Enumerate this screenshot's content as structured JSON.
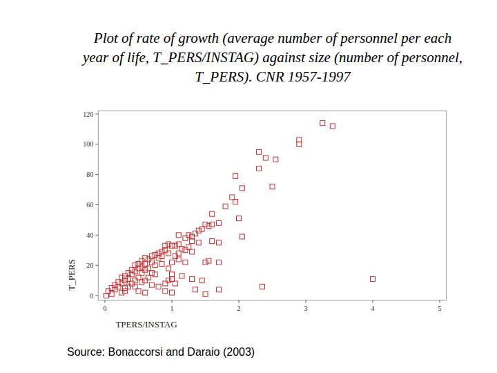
{
  "chart_data": {
    "type": "scatter",
    "title": "Plot of rate of growth (average number of personnel per each year of life, T_PERS/INSTAG) against size (number of personnel, T_PERS). CNR 1957-1997",
    "x_label": "TPERS/INSTAG",
    "y_label": "T_PERS",
    "source": "Source: Bonaccorsi and Daraio (2003)",
    "color": "#c8282a",
    "marker": "square",
    "grid": false,
    "xlim": [
      -0.1,
      5.1
    ],
    "ylim": [
      -3,
      122
    ],
    "xticks": [
      0,
      1,
      2,
      3,
      4,
      5
    ],
    "yticks": [
      0,
      20,
      40,
      60,
      80,
      100,
      120
    ],
    "x": [
      3.25,
      3.4,
      2.9,
      2.9,
      2.3,
      2.4,
      2.55,
      2.3,
      2.5,
      1.95,
      2.05,
      1.9,
      1.95,
      1.8,
      2.0,
      2.05,
      1.6,
      1.7,
      1.6,
      1.5,
      1.55,
      1.45,
      1.4,
      1.35,
      1.3,
      1.25,
      1.1,
      1.2,
      1.3,
      1.4,
      1.6,
      1.7,
      1.1,
      1.05,
      1.0,
      0.95,
      0.9,
      1.15,
      1.1,
      1.2,
      0.9,
      0.85,
      0.8,
      0.75,
      0.8,
      0.7,
      0.6,
      0.65,
      0.55,
      0.7,
      0.75,
      0.6,
      0.5,
      0.55,
      0.45,
      0.5,
      0.4,
      0.45,
      0.35,
      0.55,
      0.6,
      0.65,
      0.4,
      0.3,
      0.35,
      0.25,
      0.3,
      0.2,
      0.25,
      0.15,
      0.2,
      0.1,
      0.05,
      0.15,
      0.3,
      0.4,
      0.5,
      0.6,
      0.45,
      0.3,
      0.5,
      0.6,
      0.75,
      0.85,
      0.95,
      1.0,
      1.1,
      1.2,
      1.3,
      1.15,
      1.3,
      1.45,
      0.95,
      1.0,
      1.05,
      0.9,
      0.7,
      1.5,
      1.55,
      1.7,
      1.0,
      0.8,
      0.9,
      1.0,
      1.35,
      1.5,
      1.7,
      2.35,
      4.0,
      0.1,
      0.02,
      0.25,
      0.35,
      0.65,
      0.55,
      0.45,
      0.7,
      1.25,
      0.85,
      0.95,
      1.05
    ],
    "values": [
      114,
      112,
      103,
      100,
      95,
      91,
      90,
      84,
      72,
      79,
      71,
      65,
      62,
      59,
      51,
      39,
      54,
      48,
      47,
      47,
      46,
      44,
      43,
      41,
      39,
      40,
      40,
      38,
      36,
      35,
      36,
      35,
      34,
      33,
      33,
      34,
      33,
      31,
      28,
      30,
      30,
      29,
      28,
      27,
      25,
      26,
      25,
      24,
      23,
      22,
      20,
      21,
      21,
      19,
      20,
      18,
      17,
      16,
      15,
      15,
      17,
      18,
      14,
      13,
      11,
      12,
      10,
      9,
      8,
      7,
      6,
      5,
      3,
      4,
      5,
      8,
      12,
      10,
      6,
      3,
      3,
      2,
      14,
      21,
      18,
      22,
      24,
      22,
      29,
      13,
      11,
      10,
      10,
      11,
      8,
      8,
      7,
      22,
      23,
      22,
      14,
      6,
      3,
      2,
      4,
      1,
      4,
      6,
      11,
      1,
      0,
      2,
      6,
      12,
      9,
      10,
      15,
      32,
      26,
      28,
      26
    ]
  }
}
